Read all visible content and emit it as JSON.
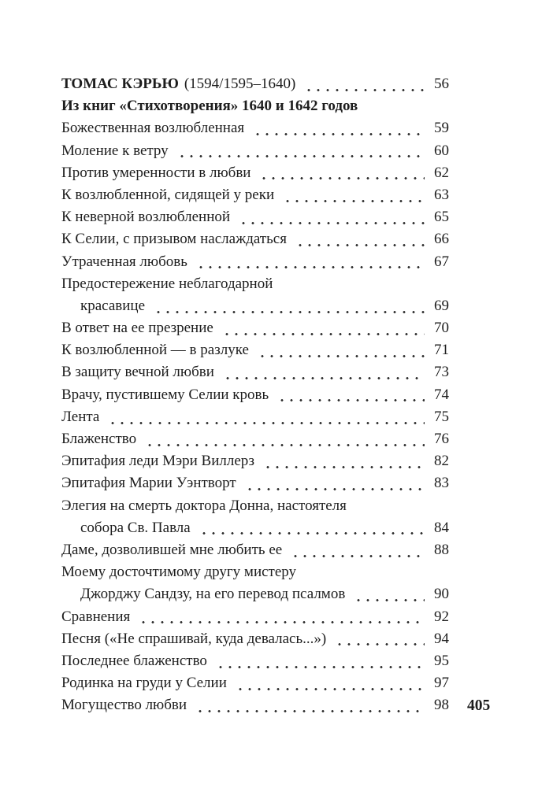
{
  "page": {
    "background_color": "#ffffff",
    "text_color": "#1d1d1d",
    "folio": "405"
  },
  "toc": {
    "header": {
      "author": "ТОМАС КЭРЬЮ",
      "years": "(1594/1595–1640)",
      "page": "56"
    },
    "section_title": "Из книг «Стихотворения» 1640 и 1642 годов",
    "entries": [
      {
        "lines": [
          "Божественная возлюбленная"
        ],
        "page": "59"
      },
      {
        "lines": [
          "Моление к ветру"
        ],
        "page": "60"
      },
      {
        "lines": [
          "Против умеренности в любви"
        ],
        "page": "62"
      },
      {
        "lines": [
          "К возлюбленной, сидящей у реки"
        ],
        "page": "63"
      },
      {
        "lines": [
          "К неверной возлюбленной"
        ],
        "page": "65"
      },
      {
        "lines": [
          "К Селии, с призывом наслаждаться"
        ],
        "page": "66"
      },
      {
        "lines": [
          "Утраченная любовь"
        ],
        "page": "67"
      },
      {
        "lines": [
          "Предостережение неблагодарной",
          "красавице"
        ],
        "page": "69"
      },
      {
        "lines": [
          "В ответ на ее презрение"
        ],
        "page": "70"
      },
      {
        "lines": [
          "К возлюбленной — в разлуке"
        ],
        "page": "71"
      },
      {
        "lines": [
          "В защиту вечной любви"
        ],
        "page": "73"
      },
      {
        "lines": [
          "Врачу, пустившему Селии кровь"
        ],
        "page": "74"
      },
      {
        "lines": [
          "Лента"
        ],
        "page": "75"
      },
      {
        "lines": [
          "Блаженство"
        ],
        "page": "76"
      },
      {
        "lines": [
          "Эпитафия леди Мэри Виллерз"
        ],
        "page": "82"
      },
      {
        "lines": [
          "Эпитафия Марии Уэнтворт"
        ],
        "page": "83"
      },
      {
        "lines": [
          "Элегия на смерть доктора Донна, настоятеля",
          "собора Св. Павла"
        ],
        "page": "84"
      },
      {
        "lines": [
          "Даме, дозволившей мне любить ее"
        ],
        "page": "88"
      },
      {
        "lines": [
          "Моему досточтимому другу мистеру",
          "Джорджу Сандзу, на его перевод псалмов"
        ],
        "page": "90"
      },
      {
        "lines": [
          "Сравнения"
        ],
        "page": "92"
      },
      {
        "lines": [
          "Песня («Не спрашивай, куда девалась...»)"
        ],
        "page": "94"
      },
      {
        "lines": [
          "Последнее блаженство"
        ],
        "page": "95"
      },
      {
        "lines": [
          "Родинка на груди у Селии"
        ],
        "page": "97"
      },
      {
        "lines": [
          "Могущество любви"
        ],
        "page": "98"
      }
    ]
  }
}
